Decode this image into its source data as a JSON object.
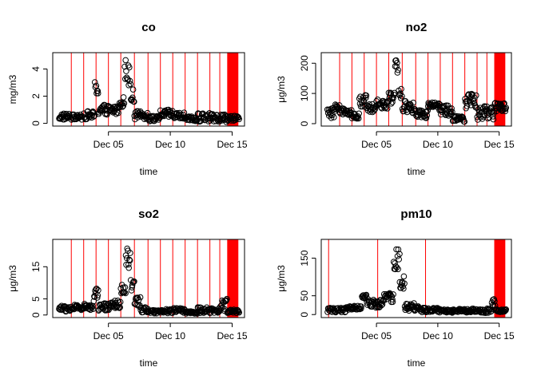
{
  "chart_data": [
    {
      "type": "scatter",
      "title": "co",
      "xlabel": "time",
      "ylabel": "mg/m3",
      "xlim": [
        0.5,
        16.0
      ],
      "ylim": [
        -0.2,
        5.2
      ],
      "yticks": [
        0,
        2,
        4
      ],
      "xticks": [
        {
          "value": 5,
          "label": "Dec 05"
        },
        {
          "value": 10,
          "label": "Dec 10"
        },
        {
          "value": 15,
          "label": "Dec 15"
        }
      ],
      "vlines": [
        2.0,
        3.0,
        4.0,
        5.0,
        6.0,
        7.1,
        8.2,
        9.2,
        10.2,
        11.2,
        12.2,
        13.2,
        14.0
      ],
      "band": [
        14.6,
        15.5
      ],
      "segments": [
        {
          "x0": 1.0,
          "x1": 1.9,
          "base": 0.5,
          "jitter": 0.25
        },
        {
          "x0": 2.0,
          "x1": 2.9,
          "base": 0.45,
          "jitter": 0.2
        },
        {
          "x0": 3.0,
          "x1": 3.9,
          "base": 0.6,
          "jitter": 0.3
        },
        {
          "x0": 3.9,
          "x1": 4.2,
          "base": 2.5,
          "jitter": 0.6
        },
        {
          "x0": 4.2,
          "x1": 5.0,
          "base": 1.0,
          "jitter": 0.4
        },
        {
          "x0": 5.0,
          "x1": 5.9,
          "base": 1.0,
          "jitter": 0.35
        },
        {
          "x0": 5.9,
          "x1": 6.3,
          "base": 1.6,
          "jitter": 0.4
        },
        {
          "x0": 6.3,
          "x1": 6.8,
          "base": 3.8,
          "jitter": 1.0
        },
        {
          "x0": 6.8,
          "x1": 7.1,
          "base": 2.0,
          "jitter": 0.5
        },
        {
          "x0": 7.1,
          "x1": 8.2,
          "base": 0.6,
          "jitter": 0.3
        },
        {
          "x0": 8.2,
          "x1": 9.2,
          "base": 0.35,
          "jitter": 0.2
        },
        {
          "x0": 9.2,
          "x1": 10.2,
          "base": 0.7,
          "jitter": 0.3
        },
        {
          "x0": 10.2,
          "x1": 11.2,
          "base": 0.55,
          "jitter": 0.25
        },
        {
          "x0": 11.2,
          "x1": 12.2,
          "base": 0.3,
          "jitter": 0.2
        },
        {
          "x0": 12.2,
          "x1": 13.2,
          "base": 0.45,
          "jitter": 0.35
        },
        {
          "x0": 13.2,
          "x1": 14.6,
          "base": 0.4,
          "jitter": 0.3
        },
        {
          "x0": 14.6,
          "x1": 15.6,
          "base": 0.35,
          "jitter": 0.2
        }
      ]
    },
    {
      "type": "scatter",
      "title": "no2",
      "xlabel": "time",
      "ylabel": "μg/m3",
      "xlim": [
        0.5,
        16.0
      ],
      "ylim": [
        -8,
        235
      ],
      "yticks": [
        0,
        100,
        200
      ],
      "xticks": [
        {
          "value": 5,
          "label": "Dec 05"
        },
        {
          "value": 10,
          "label": "Dec 10"
        },
        {
          "value": 15,
          "label": "Dec 15"
        }
      ],
      "vlines": [
        2.0,
        3.0,
        4.0,
        5.0,
        6.0,
        7.1,
        8.2,
        9.2,
        10.2,
        11.2,
        12.2,
        13.2,
        14.0
      ],
      "band": [
        14.6,
        15.5
      ],
      "segments": [
        {
          "x0": 1.0,
          "x1": 1.6,
          "base": 35,
          "jitter": 18
        },
        {
          "x0": 1.6,
          "x1": 2.0,
          "base": 55,
          "jitter": 8
        },
        {
          "x0": 2.0,
          "x1": 3.0,
          "base": 40,
          "jitter": 12
        },
        {
          "x0": 3.0,
          "x1": 3.6,
          "base": 25,
          "jitter": 10
        },
        {
          "x0": 3.6,
          "x1": 4.2,
          "base": 75,
          "jitter": 20
        },
        {
          "x0": 4.2,
          "x1": 5.0,
          "base": 50,
          "jitter": 15
        },
        {
          "x0": 5.0,
          "x1": 6.0,
          "base": 65,
          "jitter": 15
        },
        {
          "x0": 6.0,
          "x1": 6.5,
          "base": 85,
          "jitter": 20
        },
        {
          "x0": 6.5,
          "x1": 6.8,
          "base": 190,
          "jitter": 35
        },
        {
          "x0": 6.8,
          "x1": 7.1,
          "base": 95,
          "jitter": 20
        },
        {
          "x0": 7.1,
          "x1": 8.2,
          "base": 55,
          "jitter": 20
        },
        {
          "x0": 8.2,
          "x1": 9.2,
          "base": 30,
          "jitter": 15
        },
        {
          "x0": 9.2,
          "x1": 10.2,
          "base": 55,
          "jitter": 15
        },
        {
          "x0": 10.2,
          "x1": 11.2,
          "base": 45,
          "jitter": 20
        },
        {
          "x0": 11.2,
          "x1": 12.2,
          "base": 15,
          "jitter": 10
        },
        {
          "x0": 12.2,
          "x1": 13.2,
          "base": 75,
          "jitter": 25
        },
        {
          "x0": 13.2,
          "x1": 14.6,
          "base": 35,
          "jitter": 25
        },
        {
          "x0": 14.6,
          "x1": 15.6,
          "base": 55,
          "jitter": 15
        }
      ]
    },
    {
      "type": "scatter",
      "title": "so2",
      "xlabel": "time",
      "ylabel": "μg/m3",
      "xlim": [
        0.5,
        16.0
      ],
      "ylim": [
        -0.8,
        23.5
      ],
      "yticks": [
        0,
        5,
        15
      ],
      "xticks": [
        {
          "value": 5,
          "label": "Dec 05"
        },
        {
          "value": 10,
          "label": "Dec 10"
        },
        {
          "value": 15,
          "label": "Dec 15"
        }
      ],
      "vlines": [
        2.0,
        3.0,
        4.0,
        5.0,
        6.0,
        7.1,
        8.2,
        9.2,
        10.2,
        11.2,
        12.2,
        13.2,
        14.0
      ],
      "band": [
        14.6,
        15.5
      ],
      "segments": [
        {
          "x0": 1.0,
          "x1": 2.0,
          "base": 2.0,
          "jitter": 1.0
        },
        {
          "x0": 2.0,
          "x1": 3.0,
          "base": 2.3,
          "jitter": 0.9
        },
        {
          "x0": 3.0,
          "x1": 3.8,
          "base": 2.5,
          "jitter": 1.0
        },
        {
          "x0": 3.8,
          "x1": 4.2,
          "base": 6.5,
          "jitter": 2.5
        },
        {
          "x0": 4.2,
          "x1": 5.0,
          "base": 2.5,
          "jitter": 1.2
        },
        {
          "x0": 5.0,
          "x1": 6.0,
          "base": 3.0,
          "jitter": 1.5
        },
        {
          "x0": 6.0,
          "x1": 6.4,
          "base": 7.5,
          "jitter": 2.0
        },
        {
          "x0": 6.4,
          "x1": 6.8,
          "base": 17.5,
          "jitter": 4.0
        },
        {
          "x0": 6.8,
          "x1": 7.1,
          "base": 9.0,
          "jitter": 2.0
        },
        {
          "x0": 7.1,
          "x1": 7.6,
          "base": 4.0,
          "jitter": 1.5
        },
        {
          "x0": 7.6,
          "x1": 8.2,
          "base": 1.6,
          "jitter": 0.8
        },
        {
          "x0": 8.2,
          "x1": 9.2,
          "base": 1.0,
          "jitter": 0.5
        },
        {
          "x0": 9.2,
          "x1": 10.2,
          "base": 1.2,
          "jitter": 0.7
        },
        {
          "x0": 10.2,
          "x1": 11.2,
          "base": 1.5,
          "jitter": 0.8
        },
        {
          "x0": 11.2,
          "x1": 12.2,
          "base": 0.8,
          "jitter": 0.4
        },
        {
          "x0": 12.2,
          "x1": 13.2,
          "base": 1.5,
          "jitter": 0.9
        },
        {
          "x0": 13.2,
          "x1": 14.0,
          "base": 1.3,
          "jitter": 0.8
        },
        {
          "x0": 14.0,
          "x1": 14.6,
          "base": 3.0,
          "jitter": 2.0
        },
        {
          "x0": 14.6,
          "x1": 15.6,
          "base": 1.2,
          "jitter": 0.6
        }
      ]
    },
    {
      "type": "scatter",
      "title": "pm10",
      "xlabel": "time",
      "ylabel": "μg/m3",
      "xlim": [
        0.5,
        16.0
      ],
      "ylim": [
        -8,
        200
      ],
      "yticks": [
        0,
        50,
        150
      ],
      "xticks": [
        {
          "value": 5,
          "label": "Dec 05"
        },
        {
          "value": 10,
          "label": "Dec 10"
        },
        {
          "value": 15,
          "label": "Dec 15"
        }
      ],
      "vlines": [
        1.1,
        5.1,
        9.0
      ],
      "band": [
        14.6,
        15.5
      ],
      "segments": [
        {
          "x0": 1.0,
          "x1": 2.5,
          "base": 12,
          "jitter": 6
        },
        {
          "x0": 2.5,
          "x1": 3.8,
          "base": 18,
          "jitter": 5
        },
        {
          "x0": 3.8,
          "x1": 4.3,
          "base": 40,
          "jitter": 15
        },
        {
          "x0": 4.3,
          "x1": 5.5,
          "base": 30,
          "jitter": 12
        },
        {
          "x0": 5.5,
          "x1": 6.4,
          "base": 45,
          "jitter": 12
        },
        {
          "x0": 6.4,
          "x1": 6.9,
          "base": 150,
          "jitter": 30
        },
        {
          "x0": 6.9,
          "x1": 7.3,
          "base": 85,
          "jitter": 20
        },
        {
          "x0": 7.3,
          "x1": 8.5,
          "base": 20,
          "jitter": 10
        },
        {
          "x0": 8.5,
          "x1": 10.0,
          "base": 12,
          "jitter": 6
        },
        {
          "x0": 10.0,
          "x1": 12.5,
          "base": 10,
          "jitter": 5
        },
        {
          "x0": 12.5,
          "x1": 14.4,
          "base": 10,
          "jitter": 6
        },
        {
          "x0": 14.4,
          "x1": 14.7,
          "base": 30,
          "jitter": 12
        },
        {
          "x0": 14.7,
          "x1": 15.6,
          "base": 10,
          "jitter": 4
        }
      ]
    }
  ],
  "colors": {
    "points": "#000000",
    "lines": "#ff0000",
    "axes": "#000000"
  }
}
